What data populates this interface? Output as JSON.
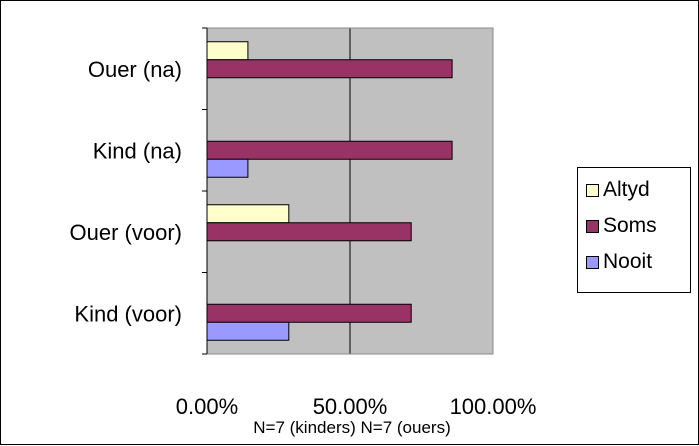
{
  "chart_data": {
    "type": "bar",
    "orientation": "horizontal",
    "categories": [
      "Kind (voor)",
      "Ouer (voor)",
      "Kind (na)",
      "Ouer (na)"
    ],
    "series": [
      {
        "name": "Altyd",
        "color": "#ffffcc",
        "values": [
          0,
          28.6,
          0,
          14.3
        ]
      },
      {
        "name": "Soms",
        "color": "#993366",
        "values": [
          71.4,
          71.4,
          85.7,
          85.7
        ]
      },
      {
        "name": "Nooit",
        "color": "#9999ff",
        "values": [
          28.6,
          0,
          14.3,
          0
        ]
      }
    ],
    "xlim": [
      0,
      100
    ],
    "xticks": [
      "0.00%",
      "50.00%",
      "100.00%"
    ],
    "xtick_values": [
      0,
      50,
      100
    ],
    "note": "N=7 (kinders) N=7 (ouers)",
    "plot_background": "#c0c0c0",
    "grid": true,
    "legend_position": "right"
  }
}
